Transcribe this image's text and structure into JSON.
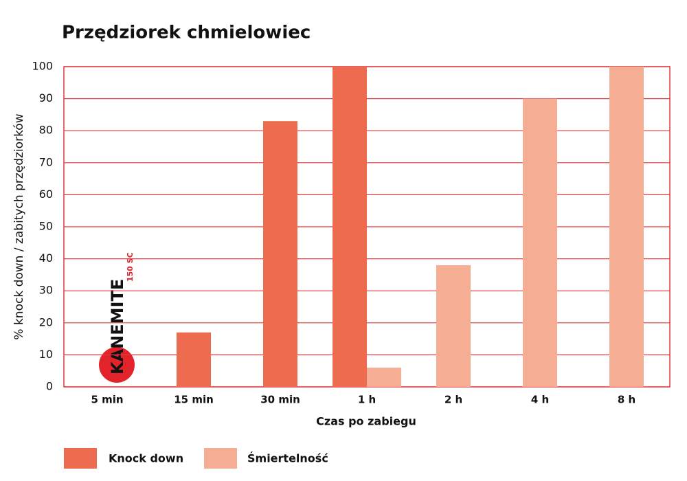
{
  "chart_data": {
    "type": "bar",
    "title": "Przędziorek chmielowiec",
    "x_label": "Czas po zabiegu",
    "y_label": "% knock down / zabitych przędziorków",
    "categories": [
      "5 min",
      "15 min",
      "30 min",
      "1 h",
      "2 h",
      "4 h",
      "8 h"
    ],
    "series": [
      {
        "name": "Knock down",
        "color": "#ed6b4e",
        "values": [
          null,
          17,
          83,
          100,
          null,
          null,
          null
        ]
      },
      {
        "name": "Śmiertelność",
        "color": "#f5ae94",
        "values": [
          null,
          null,
          null,
          6,
          38,
          90,
          100
        ]
      }
    ],
    "ylim": [
      0,
      100
    ],
    "yticks": [
      0,
      10,
      20,
      30,
      40,
      50,
      60,
      70,
      80,
      90,
      100
    ],
    "grid": true,
    "grid_color": "#e2383c",
    "legend": "bottom",
    "logo": {
      "name": "KANEMITE",
      "sub": "150 SC"
    }
  }
}
